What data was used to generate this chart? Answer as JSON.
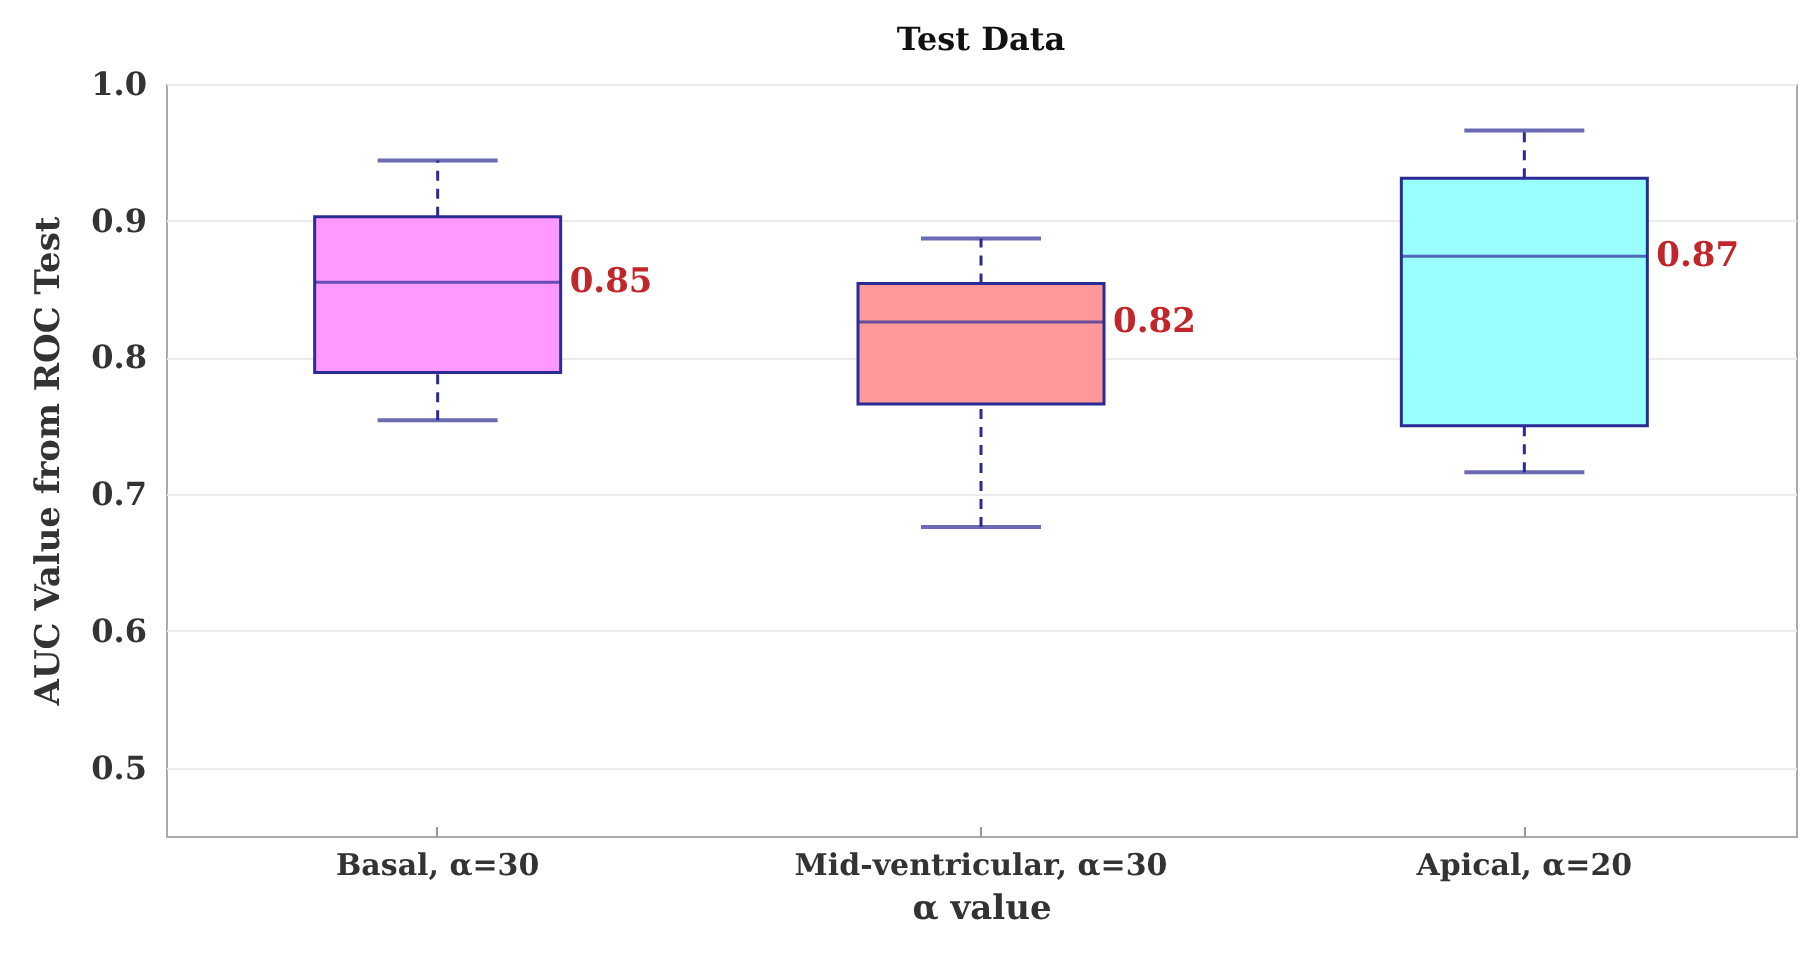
{
  "chart_data": {
    "type": "box",
    "title": "Test Data",
    "xlabel": "α value",
    "ylabel": "AUC Value from ROC Test",
    "categories": [
      "Basal, α=30",
      "Mid-ventricular, α=30",
      "Apical, α=20"
    ],
    "boxes": [
      {
        "low": 0.754,
        "q1": 0.789,
        "median": 0.855,
        "q3": 0.903,
        "high": 0.944
      },
      {
        "low": 0.676,
        "q1": 0.766,
        "median": 0.826,
        "q3": 0.854,
        "high": 0.887
      },
      {
        "low": 0.716,
        "q1": 0.75,
        "median": 0.874,
        "q3": 0.931,
        "high": 0.966
      }
    ],
    "colors": [
      "#ff99ff",
      "#ff9999",
      "#99ffff"
    ],
    "ylim": [
      0.45,
      1.0
    ],
    "yticks": [
      {
        "value": 0.5,
        "label": "0.5"
      },
      {
        "value": 0.6,
        "label": "0.6"
      },
      {
        "value": 0.7,
        "label": "0.7"
      },
      {
        "value": 0.8,
        "label": "0.8"
      },
      {
        "value": 0.9,
        "label": "0.9"
      },
      {
        "value": 1.0,
        "label": "1.0"
      }
    ],
    "grid": "y",
    "annotations": [
      "0.85",
      "0.82",
      "0.87"
    ]
  }
}
